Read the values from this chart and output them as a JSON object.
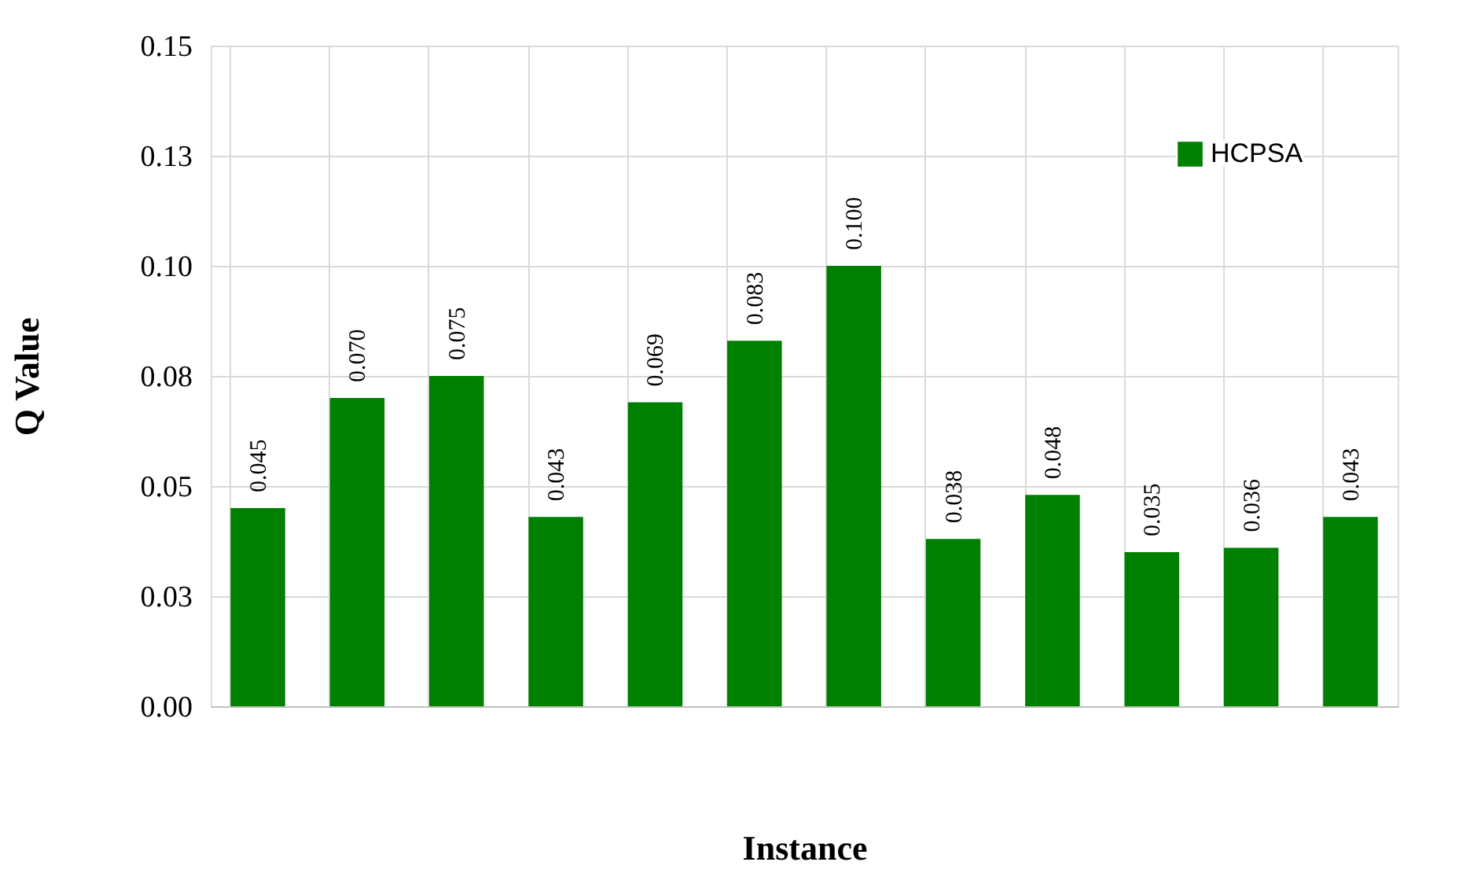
{
  "chart_data": {
    "type": "bar",
    "xlabel": "Instance",
    "ylabel": "Q Value",
    "categories": [
      null,
      null,
      null,
      null,
      null,
      null,
      null,
      null,
      null,
      null,
      null,
      null
    ],
    "series": [
      {
        "name": "HCPSA",
        "color": "#008000",
        "values": [
          0.045,
          0.07,
          0.075,
          0.043,
          0.069,
          0.083,
          0.1,
          0.038,
          0.048,
          0.035,
          0.036,
          0.043
        ],
        "value_labels": [
          "0.045",
          "0.070",
          "0.075",
          "0.043",
          "0.069",
          "0.083",
          "0.100",
          "0.038",
          "0.048",
          "0.035",
          "0.036",
          "0.043"
        ]
      }
    ],
    "ylim": [
      0,
      0.15
    ],
    "yticks": [
      {
        "value": 0,
        "label": "0.00"
      },
      {
        "value": 0.025,
        "label": "0.03"
      },
      {
        "value": 0.05,
        "label": "0.05"
      },
      {
        "value": 0.075,
        "label": "0.08"
      },
      {
        "value": 0.1,
        "label": "0.10"
      },
      {
        "value": 0.125,
        "label": "0.13"
      },
      {
        "value": 0.15,
        "label": "0.15"
      }
    ],
    "grid": true,
    "legend": "top right",
    "tick_labels": "y"
  }
}
